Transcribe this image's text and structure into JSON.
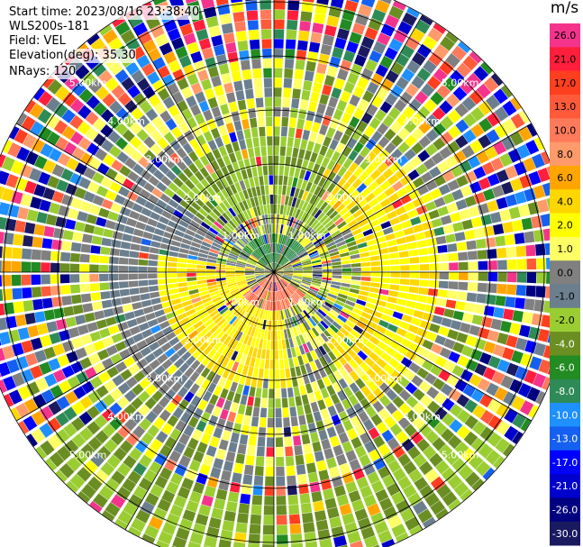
{
  "header": {
    "start_time": "Start time: 2023/08/16 23:38:40",
    "instrument": "WLS200s-181",
    "field": "Field: VEL",
    "elevation": "Elevation(deg): 35.30",
    "nrays": "NRays: 120"
  },
  "chart_data": {
    "type": "heatmap",
    "projection": "polar-ppi",
    "field": "VEL",
    "unit": "m/s",
    "n_rays": 120,
    "elevation_deg": 35.3,
    "range_rings_km": [
      1,
      2,
      3,
      4,
      5
    ],
    "range_ring_labels": [
      "1.00km",
      "2.00km",
      "3.00km",
      "4.00km",
      "5.00km"
    ],
    "max_range_km": 5.5,
    "colorbar": {
      "ticks": [
        26.0,
        21.0,
        17.0,
        13.0,
        10.0,
        8.0,
        6.0,
        4.0,
        2.0,
        1.0,
        0.0,
        -1.0,
        -2.0,
        -4.0,
        -6.0,
        -8.0,
        -10.0,
        -13.0,
        -17.0,
        -21.0,
        -26.0,
        -30.0
      ],
      "tick_labels": [
        "26.0",
        "21.0",
        "17.0",
        "13.0",
        "10.0",
        "8.0",
        "6.0",
        "4.0",
        "2.0",
        "1.0",
        "0.0",
        "-1.0",
        "-2.0",
        "-4.0",
        "-6.0",
        "-8.0",
        "-10.0",
        "-13.0",
        "-17.0",
        "-21.0",
        "-26.0",
        "-30.0"
      ],
      "colors": [
        "#f4348c",
        "#ff1f3c",
        "#ff3f1f",
        "#ff5a3a",
        "#ff7a5a",
        "#ff9a6a",
        "#ffa500",
        "#ffd700",
        "#ffff00",
        "#ffff66",
        "#808080",
        "#6b7f8e",
        "#9acd32",
        "#6b8e23",
        "#228b22",
        "#2e8b57",
        "#1e90ff",
        "#1560f0",
        "#0000ff",
        "#0000cd",
        "#000080",
        "#1a1a60"
      ]
    },
    "pattern_regions": [
      {
        "range_km": [
          0,
          0.7
        ],
        "sector": "north",
        "values": [
          -6.0,
          -8.0
        ]
      },
      {
        "range_km": [
          0,
          0.7
        ],
        "sector": "south",
        "values": [
          8.0,
          13.0
        ]
      },
      {
        "range_km": [
          0.5,
          2.0
        ],
        "sector": "south-west",
        "values": [
          2.0,
          4.0
        ]
      },
      {
        "range_km": [
          1.5,
          3.0
        ],
        "sector": "east",
        "values": [
          2.0,
          4.0
        ]
      },
      {
        "range_km": [
          1.0,
          2.5
        ],
        "sector": "north",
        "values": [
          -2.0,
          -4.0
        ]
      },
      {
        "range_km": [
          1.0,
          3.0
        ],
        "sector": "west",
        "values": [
          0.0,
          -1.0
        ]
      },
      {
        "range_km": [
          4.0,
          5.5
        ],
        "sector": "south",
        "values": [
          -2.0,
          -4.0
        ]
      },
      {
        "range_km": [
          4.0,
          5.5
        ],
        "sector": "all-other",
        "values": "noise"
      }
    ]
  }
}
